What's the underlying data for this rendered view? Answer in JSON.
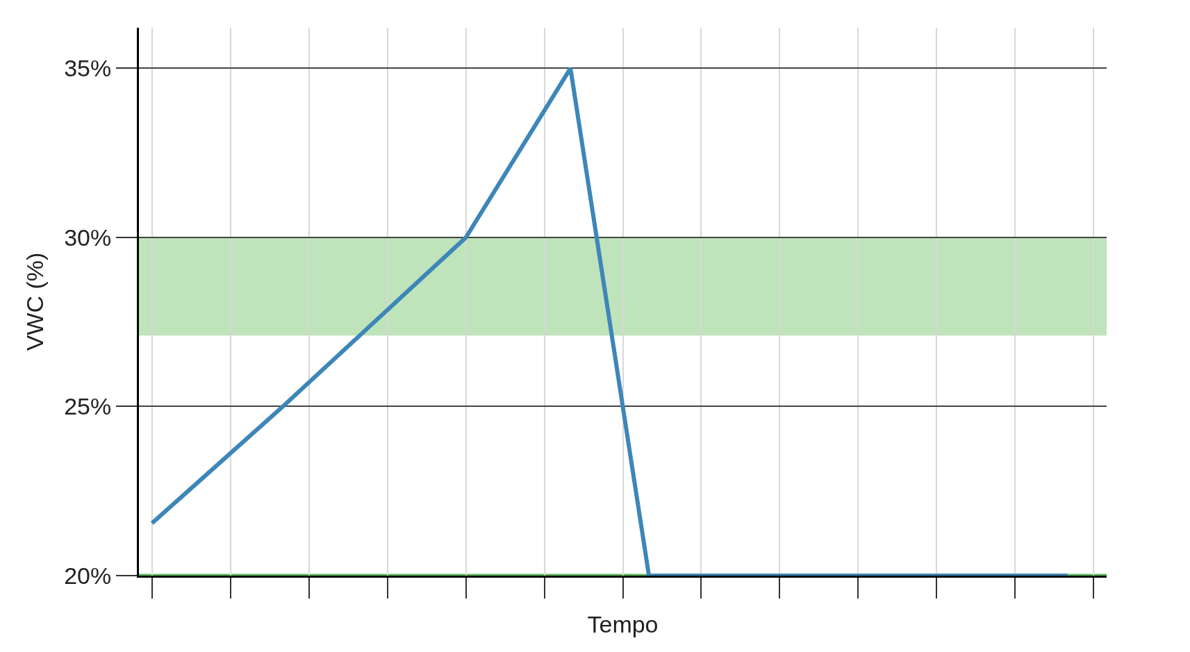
{
  "chart_data": {
    "type": "line",
    "xlabel": "Tempo",
    "ylabel": "VWC (%)",
    "categories": [
      null,
      null,
      null,
      null,
      null,
      null,
      null,
      null,
      null,
      null,
      null,
      null,
      null,
      null,
      null,
      null,
      null,
      null,
      null,
      null,
      null,
      null,
      null,
      null,
      null,
      null,
      null,
      null,
      null,
      null,
      null,
      null,
      null,
      null,
      null,
      null,
      null
    ],
    "series": [
      {
        "color": "#3d86b8",
        "values": [
          21.55,
          null,
          null,
          null,
          null,
          25,
          null,
          null,
          null,
          null,
          null,
          null,
          30,
          null,
          null,
          null,
          35,
          null,
          null,
          20,
          null,
          null,
          null,
          null,
          null,
          null,
          null,
          null,
          null,
          null,
          null,
          null,
          null,
          null,
          null,
          20,
          null
        ]
      }
    ],
    "ylim": [
      20,
      36.2
    ],
    "yticks": [
      {
        "value": 20,
        "label": "20%"
      },
      {
        "value": 25,
        "label": "25%"
      },
      {
        "value": 30,
        "label": "30%"
      },
      {
        "value": 35,
        "label": "35%"
      }
    ],
    "grid": true,
    "marker": "none",
    "line_style": "solid",
    "bands": [
      {
        "axis": "y",
        "from": 27.1,
        "to": 30,
        "color": "#bfe3ba"
      }
    ],
    "ref_lines": [
      {
        "axis": "y",
        "value": 20,
        "color": "#5cb85c"
      }
    ]
  }
}
